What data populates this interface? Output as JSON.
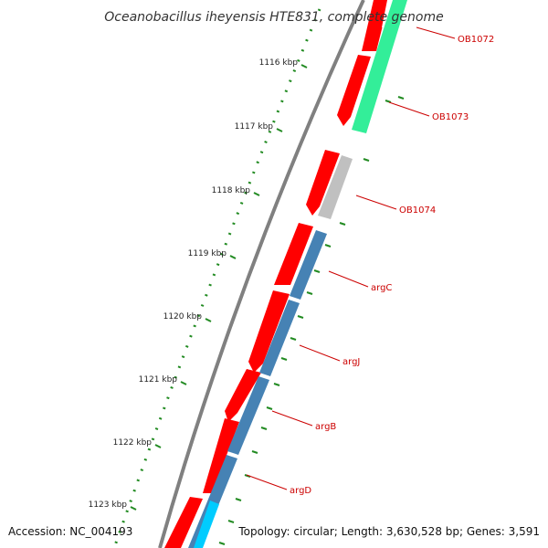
{
  "title": "Oceanobacillus iheyensis HTE831, complete genome",
  "ticks": [
    {
      "label": "1116 kbp"
    },
    {
      "label": "1117 kbp"
    },
    {
      "label": "1118 kbp"
    },
    {
      "label": "1119 kbp"
    },
    {
      "label": "1120 kbp"
    },
    {
      "label": "1121 kbp"
    },
    {
      "label": "1122 kbp"
    },
    {
      "label": "1123 kbp"
    }
  ],
  "genes": [
    {
      "label": "OB1072",
      "color": "#33ee99"
    },
    {
      "label": "OB1073",
      "color": "#33ee99"
    },
    {
      "label": "OB1074",
      "color": "#c0c0c0"
    },
    {
      "label": "argC",
      "color": "#4682b4"
    },
    {
      "label": "argJ",
      "color": "#4682b4"
    },
    {
      "label": "argB",
      "color": "#4682b4"
    },
    {
      "label": "argD",
      "color": "#4682b4"
    }
  ],
  "colors": {
    "cds_forward": "#ff0000",
    "backbone": "#808080",
    "tick": "#228b22",
    "label": "#cc0000",
    "trna": "#00ccff"
  },
  "footer": {
    "accession": "Accession: NC_004193",
    "summary": "Topology: circular; Length: 3,630,528 bp; Genes: 3,591"
  }
}
